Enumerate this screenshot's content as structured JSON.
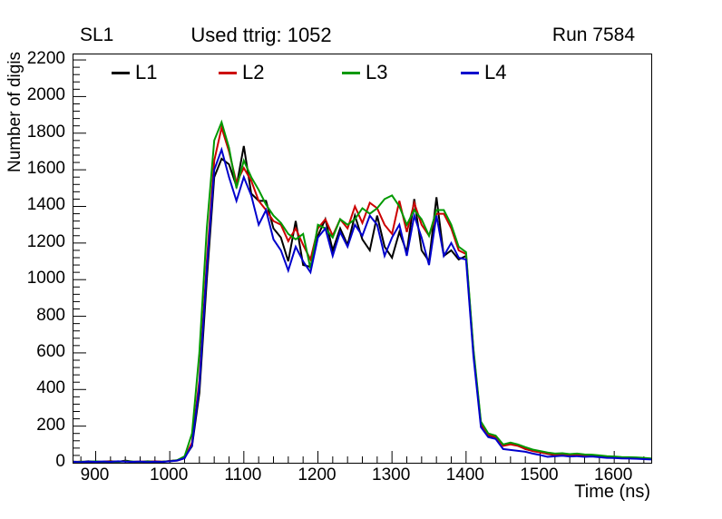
{
  "window": {
    "background": "#ffffff"
  },
  "header": {
    "left_title": "SL1",
    "center_title": "Used ttrig: 1052",
    "right_title": "Run 7584"
  },
  "chart_data": {
    "type": "line",
    "title": "Used ttrig: 1052",
    "xlabel": "Time (ns)",
    "ylabel": "Number of digis",
    "xlim": [
      870,
      1650
    ],
    "ylim": [
      0,
      2230
    ],
    "grid": false,
    "legend_position": "top-inside",
    "x_major_ticks": [
      900,
      1000,
      1100,
      1200,
      1300,
      1400,
      1500,
      1600
    ],
    "x_minor_step": 20,
    "y_major_ticks": [
      0,
      200,
      400,
      600,
      800,
      1000,
      1200,
      1400,
      1600,
      1800,
      2000,
      2200
    ],
    "y_minor_step": 40,
    "x": [
      870,
      880,
      890,
      900,
      910,
      920,
      930,
      940,
      950,
      960,
      970,
      980,
      990,
      1000,
      1010,
      1020,
      1030,
      1040,
      1050,
      1060,
      1070,
      1080,
      1090,
      1100,
      1110,
      1120,
      1130,
      1140,
      1150,
      1160,
      1170,
      1180,
      1190,
      1200,
      1210,
      1220,
      1230,
      1240,
      1250,
      1260,
      1270,
      1280,
      1290,
      1300,
      1310,
      1320,
      1330,
      1340,
      1350,
      1360,
      1370,
      1380,
      1390,
      1400,
      1410,
      1420,
      1430,
      1440,
      1450,
      1460,
      1470,
      1480,
      1490,
      1500,
      1510,
      1520,
      1530,
      1540,
      1550,
      1560,
      1570,
      1580,
      1590,
      1600,
      1610,
      1620,
      1630,
      1640,
      1650
    ],
    "series": [
      {
        "name": "L1",
        "color": "#000000",
        "values": [
          6,
          4,
          8,
          5,
          6,
          9,
          5,
          12,
          6,
          5,
          8,
          6,
          5,
          10,
          14,
          30,
          90,
          380,
          1000,
          1560,
          1660,
          1630,
          1510,
          1730,
          1470,
          1430,
          1430,
          1280,
          1230,
          1100,
          1320,
          1080,
          1070,
          1240,
          1330,
          1160,
          1280,
          1190,
          1350,
          1220,
          1160,
          1350,
          1180,
          1120,
          1260,
          1150,
          1440,
          1160,
          1100,
          1450,
          1130,
          1160,
          1110,
          1130,
          600,
          210,
          150,
          140,
          95,
          105,
          95,
          75,
          65,
          58,
          48,
          42,
          46,
          40,
          42,
          38,
          40,
          34,
          30,
          30,
          27,
          26,
          25,
          23,
          20
        ]
      },
      {
        "name": "L2",
        "color": "#cc0000",
        "values": [
          5,
          6,
          4,
          7,
          5,
          8,
          6,
          9,
          5,
          7,
          5,
          8,
          6,
          9,
          12,
          25,
          110,
          450,
          1100,
          1650,
          1830,
          1700,
          1530,
          1610,
          1540,
          1430,
          1380,
          1320,
          1300,
          1210,
          1280,
          1190,
          1110,
          1280,
          1330,
          1240,
          1330,
          1280,
          1400,
          1310,
          1420,
          1390,
          1300,
          1250,
          1430,
          1260,
          1420,
          1300,
          1240,
          1360,
          1360,
          1280,
          1160,
          1140,
          610,
          215,
          152,
          142,
          92,
          100,
          92,
          76,
          64,
          56,
          50,
          44,
          47,
          42,
          44,
          40,
          41,
          35,
          31,
          31,
          28,
          27,
          26,
          24,
          21
        ]
      },
      {
        "name": "L3",
        "color": "#009900",
        "values": [
          4,
          6,
          5,
          8,
          4,
          6,
          5,
          8,
          6,
          4,
          7,
          5,
          6,
          8,
          14,
          35,
          160,
          600,
          1280,
          1760,
          1860,
          1720,
          1500,
          1650,
          1560,
          1490,
          1410,
          1350,
          1310,
          1250,
          1220,
          1250,
          1060,
          1300,
          1280,
          1230,
          1330,
          1300,
          1330,
          1390,
          1360,
          1390,
          1440,
          1460,
          1400,
          1300,
          1380,
          1330,
          1240,
          1380,
          1380,
          1300,
          1180,
          1150,
          620,
          225,
          160,
          148,
          100,
          110,
          100,
          85,
          72,
          64,
          56,
          50,
          52,
          47,
          50,
          45,
          44,
          40,
          36,
          34,
          31,
          30,
          29,
          27,
          24
        ]
      },
      {
        "name": "L4",
        "color": "#0000cc",
        "values": [
          5,
          4,
          6,
          5,
          7,
          5,
          8,
          6,
          5,
          7,
          4,
          6,
          5,
          8,
          12,
          25,
          95,
          420,
          1060,
          1600,
          1710,
          1560,
          1430,
          1560,
          1460,
          1300,
          1380,
          1220,
          1160,
          1050,
          1180,
          1100,
          1040,
          1230,
          1280,
          1130,
          1260,
          1180,
          1300,
          1240,
          1350,
          1300,
          1130,
          1230,
          1300,
          1130,
          1350,
          1230,
          1080,
          1350,
          1130,
          1200,
          1120,
          1110,
          580,
          195,
          140,
          130,
          75,
          70,
          65,
          60,
          50,
          42,
          32,
          35,
          38,
          34,
          36,
          32,
          34,
          30,
          27,
          26,
          24,
          23,
          22,
          20,
          18
        ]
      }
    ]
  }
}
